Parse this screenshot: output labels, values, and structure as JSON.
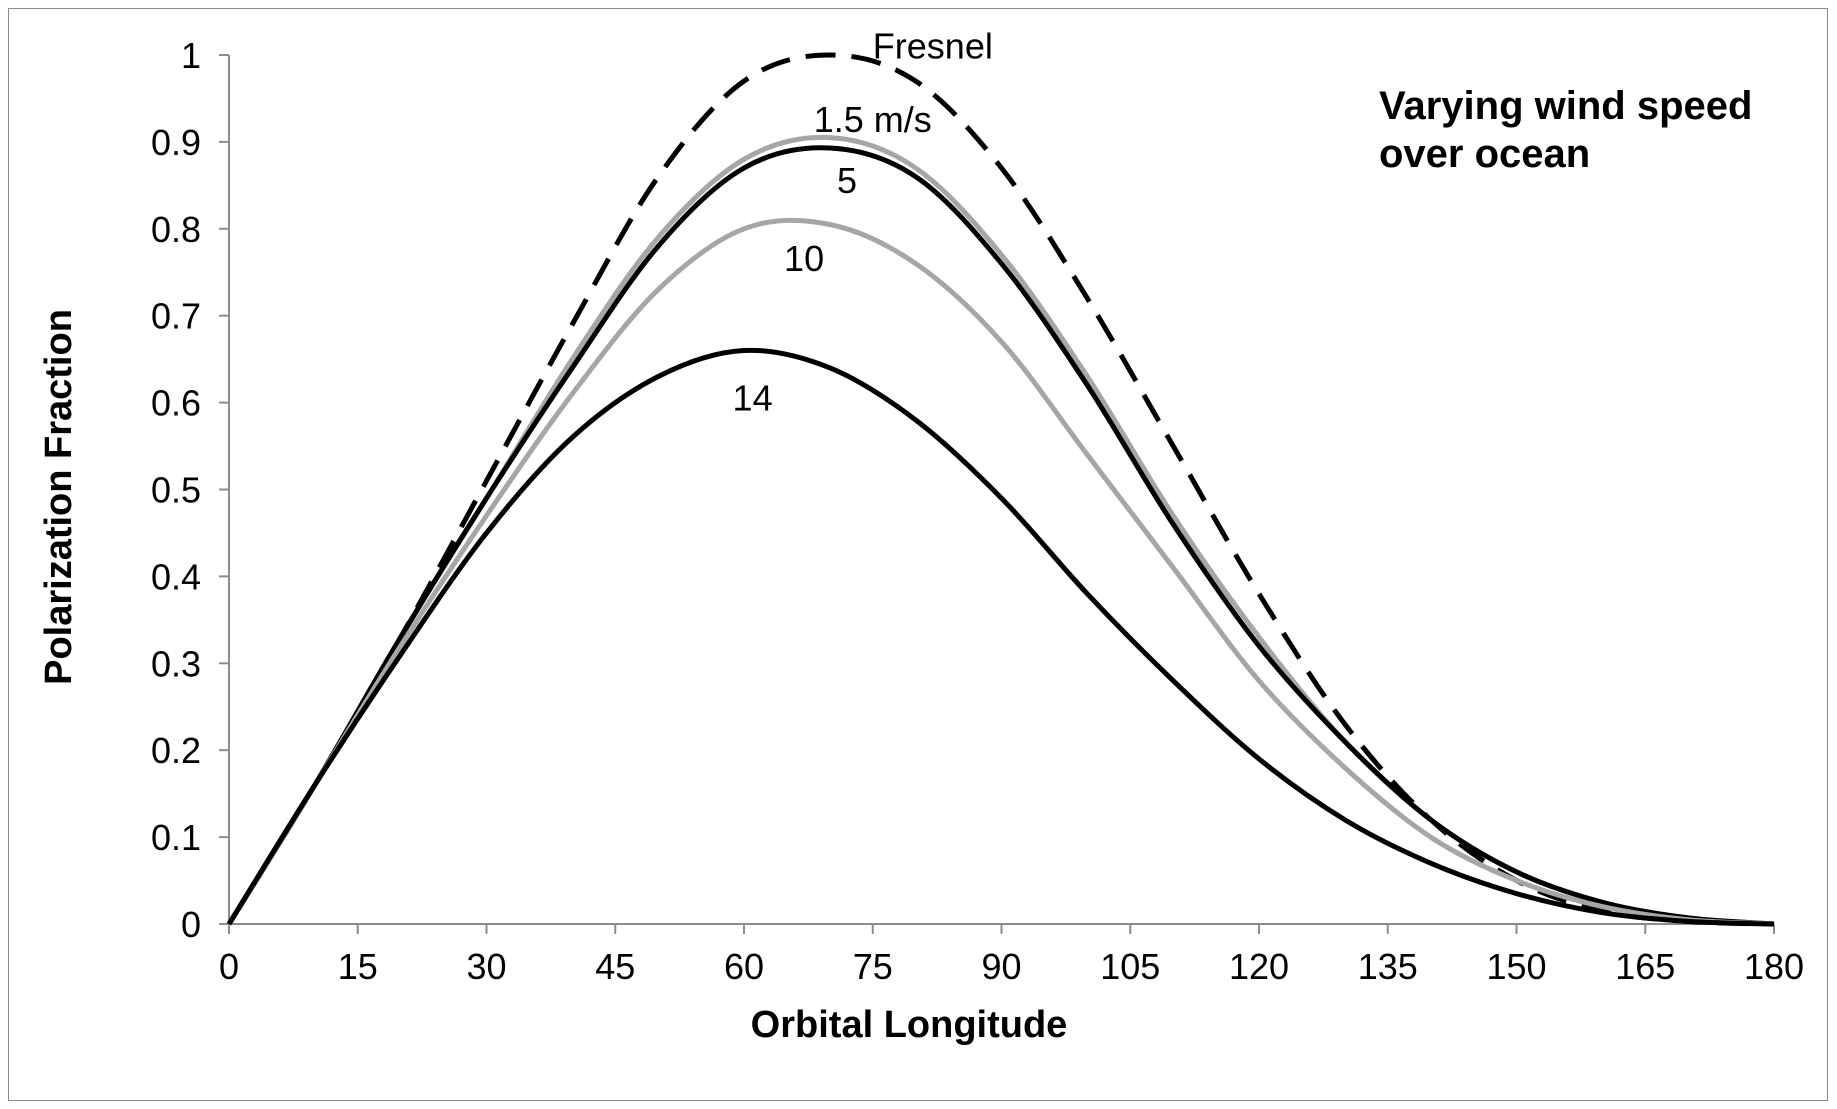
{
  "chart_data": {
    "type": "line",
    "xlabel": "Orbital Longitude",
    "ylabel": "Polarization Fraction",
    "xlim": [
      0,
      180
    ],
    "ylim": [
      0,
      1
    ],
    "x_ticks": [
      0,
      15,
      30,
      45,
      60,
      75,
      90,
      105,
      120,
      135,
      150,
      165,
      180
    ],
    "y_ticks": [
      0,
      0.1,
      0.2,
      0.3,
      0.4,
      0.5,
      0.6,
      0.7,
      0.8,
      0.9,
      1
    ],
    "grid": false,
    "annotation": [
      "Varying wind speed",
      "over ocean"
    ],
    "x": [
      0,
      10,
      20,
      30,
      40,
      50,
      60,
      70,
      80,
      90,
      100,
      110,
      120,
      130,
      140,
      150,
      160,
      170,
      180
    ],
    "series": [
      {
        "name": "Fresnel",
        "color": "#000000",
        "style": "dashed",
        "label_at": [
          82,
          1.01
        ],
        "values": [
          0,
          0.16,
          0.33,
          0.51,
          0.69,
          0.86,
          0.97,
          1.0,
          0.97,
          0.87,
          0.72,
          0.55,
          0.38,
          0.23,
          0.12,
          0.05,
          0.015,
          0.003,
          0
        ]
      },
      {
        "name": "1.5 m/s",
        "color": "#a6a6a6",
        "style": "solid",
        "label_at": [
          75,
          0.925
        ],
        "values": [
          0,
          0.16,
          0.33,
          0.49,
          0.65,
          0.79,
          0.88,
          0.905,
          0.87,
          0.77,
          0.63,
          0.47,
          0.33,
          0.21,
          0.12,
          0.06,
          0.025,
          0.007,
          0
        ]
      },
      {
        "name": "5",
        "color": "#000000",
        "style": "solid",
        "label_at": [
          72,
          0.855
        ],
        "values": [
          0,
          0.16,
          0.33,
          0.49,
          0.64,
          0.78,
          0.87,
          0.893,
          0.86,
          0.76,
          0.62,
          0.46,
          0.32,
          0.21,
          0.12,
          0.06,
          0.025,
          0.007,
          0
        ]
      },
      {
        "name": "10",
        "color": "#a6a6a6",
        "style": "solid",
        "label_at": [
          67,
          0.765
        ],
        "values": [
          0,
          0.16,
          0.32,
          0.47,
          0.61,
          0.73,
          0.8,
          0.805,
          0.76,
          0.67,
          0.54,
          0.41,
          0.28,
          0.18,
          0.1,
          0.05,
          0.02,
          0.005,
          0
        ]
      },
      {
        "name": "14",
        "color": "#000000",
        "style": "solid",
        "label_at": [
          61,
          0.605
        ],
        "values": [
          0,
          0.16,
          0.31,
          0.45,
          0.56,
          0.63,
          0.66,
          0.64,
          0.58,
          0.49,
          0.38,
          0.28,
          0.19,
          0.12,
          0.07,
          0.035,
          0.013,
          0.003,
          0
        ]
      }
    ]
  }
}
